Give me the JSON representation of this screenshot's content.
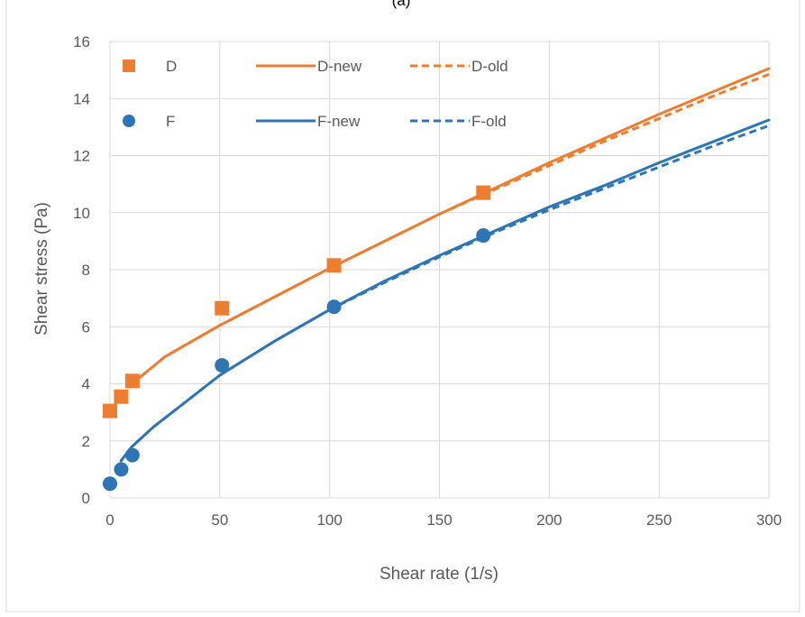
{
  "chart_data": {
    "type": "line",
    "title": "(a)",
    "xlabel": "Shear rate (1/s)",
    "ylabel": "Shear stress (Pa)",
    "xlim": [
      0,
      300
    ],
    "ylim": [
      0,
      16
    ],
    "xticks": [
      0,
      50,
      100,
      150,
      200,
      250,
      300
    ],
    "yticks": [
      0,
      2,
      4,
      6,
      8,
      10,
      12,
      14,
      16
    ],
    "grid": true,
    "legend_position": "top-left inside plot",
    "colors": {
      "D": "#ED7D31",
      "F": "#2E75B6"
    },
    "series": [
      {
        "name": "D",
        "kind": "scatter",
        "marker": "square",
        "color": "#ED7D31",
        "x": [
          0,
          5.1,
          10.2,
          51,
          102,
          170
        ],
        "y": [
          3.05,
          3.55,
          4.1,
          6.65,
          8.15,
          10.7
        ]
      },
      {
        "name": "D-new",
        "kind": "line",
        "dash": false,
        "color": "#ED7D31",
        "x": [
          10,
          25,
          50,
          75,
          100,
          125,
          150,
          175,
          200,
          225,
          250,
          275,
          300
        ],
        "y": [
          4.0,
          4.95,
          6.05,
          7.05,
          8.05,
          9.0,
          9.95,
          10.85,
          11.75,
          12.6,
          13.45,
          14.25,
          15.05
        ]
      },
      {
        "name": "D-old",
        "kind": "line",
        "dash": true,
        "color": "#ED7D31",
        "x": [
          10,
          25,
          50,
          75,
          100,
          125,
          150,
          175,
          200,
          225,
          250,
          275,
          300
        ],
        "y": [
          4.0,
          4.95,
          6.05,
          7.05,
          8.05,
          9.0,
          9.95,
          10.8,
          11.65,
          12.5,
          13.3,
          14.1,
          14.85
        ]
      },
      {
        "name": "F",
        "kind": "scatter",
        "marker": "circle",
        "color": "#2E75B6",
        "x": [
          0,
          5.1,
          10.2,
          51,
          102,
          170
        ],
        "y": [
          0.5,
          1.0,
          1.5,
          4.65,
          6.7,
          9.2
        ]
      },
      {
        "name": "F-new",
        "kind": "line",
        "dash": false,
        "color": "#2E75B6",
        "x": [
          5,
          10,
          20,
          35,
          50,
          75,
          100,
          125,
          150,
          175,
          200,
          225,
          250,
          275,
          300
        ],
        "y": [
          1.3,
          1.8,
          2.5,
          3.4,
          4.3,
          5.5,
          6.6,
          7.6,
          8.5,
          9.35,
          10.2,
          10.95,
          11.75,
          12.5,
          13.25
        ]
      },
      {
        "name": "F-old",
        "kind": "line",
        "dash": true,
        "color": "#2E75B6",
        "x": [
          5,
          10,
          20,
          35,
          50,
          75,
          100,
          125,
          150,
          175,
          200,
          225,
          250,
          275,
          300
        ],
        "y": [
          1.3,
          1.8,
          2.5,
          3.4,
          4.3,
          5.5,
          6.6,
          7.55,
          8.45,
          9.3,
          10.1,
          10.85,
          11.6,
          12.35,
          13.05
        ]
      }
    ]
  }
}
